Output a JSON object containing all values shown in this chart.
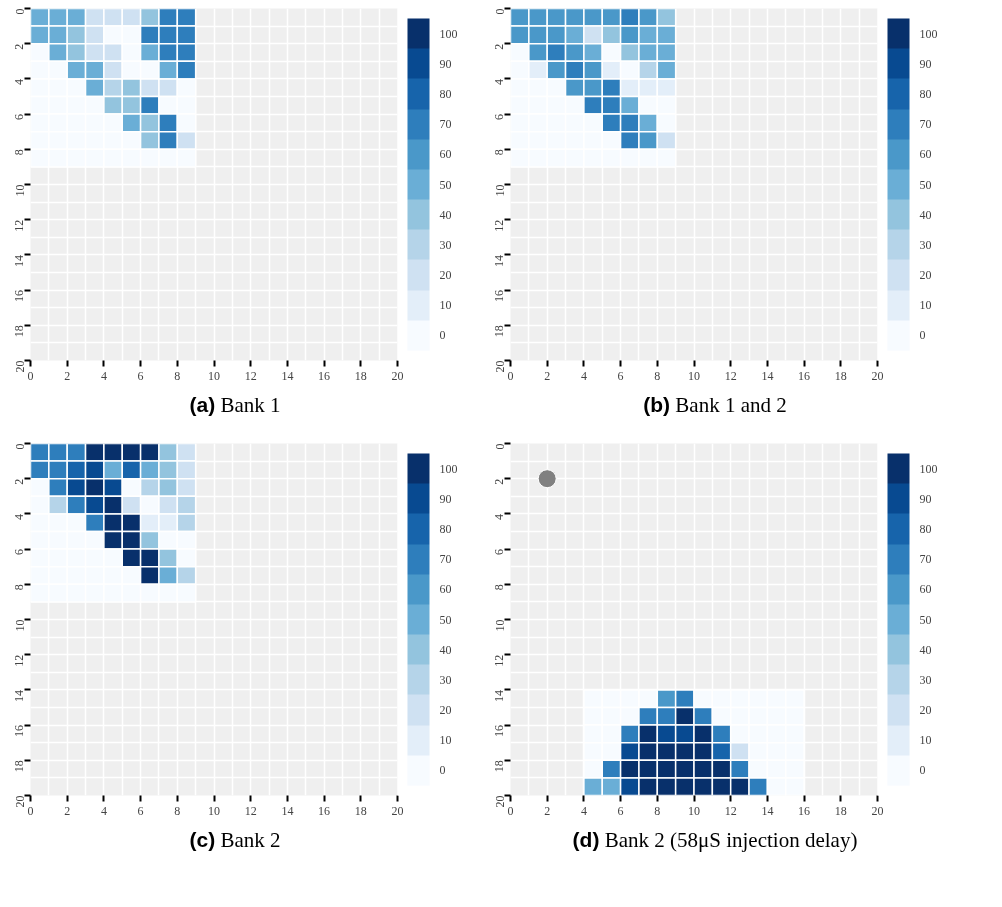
{
  "chart_data": [
    {
      "type": "heatmap",
      "title": "(a) Bank 1",
      "xlim": [
        0,
        20
      ],
      "ylim": [
        20,
        0
      ],
      "xticks": [
        0,
        2,
        4,
        6,
        8,
        10,
        12,
        14,
        16,
        18,
        20
      ],
      "yticks": [
        0,
        2,
        4,
        6,
        8,
        10,
        12,
        14,
        16,
        18,
        20
      ],
      "clim": [
        -5,
        105
      ],
      "cticks": [
        0,
        10,
        20,
        30,
        40,
        50,
        60,
        70,
        80,
        90,
        100
      ],
      "grid": true,
      "colors": [
        "#f7fbff",
        "#e3eef9",
        "#cfe1f2",
        "#b5d4e9",
        "#93c4de",
        "#6aaed6",
        "#4a98c9",
        "#2e7ebc",
        "#1764ab",
        "#084a91",
        "#08306b"
      ],
      "x": [
        0.5,
        1.5,
        2.5,
        3.5,
        4.5,
        5.5,
        6.5,
        7.5,
        8.5
      ],
      "y": [
        0.5,
        1.5,
        2.5,
        3.5,
        4.5,
        5.5,
        6.5,
        7.5,
        8.5
      ],
      "cells": [
        [
          50,
          50,
          50,
          20,
          20,
          20,
          40,
          70,
          70
        ],
        [
          50,
          50,
          40,
          20,
          0,
          0,
          70,
          70,
          70
        ],
        [
          0,
          50,
          40,
          20,
          20,
          0,
          50,
          70,
          70
        ],
        [
          0,
          0,
          50,
          50,
          20,
          0,
          0,
          50,
          70
        ],
        [
          0,
          0,
          0,
          50,
          30,
          40,
          20,
          20,
          0
        ],
        [
          0,
          0,
          0,
          0,
          40,
          40,
          70,
          0,
          0
        ],
        [
          0,
          0,
          0,
          0,
          0,
          50,
          40,
          70,
          0
        ],
        [
          0,
          0,
          0,
          0,
          0,
          0,
          40,
          70,
          20
        ],
        [
          0,
          0,
          0,
          0,
          0,
          0,
          0,
          0,
          0
        ]
      ]
    },
    {
      "type": "heatmap",
      "title": "(b) Bank 1 and 2",
      "xlim": [
        0,
        20
      ],
      "ylim": [
        20,
        0
      ],
      "xticks": [
        0,
        2,
        4,
        6,
        8,
        10,
        12,
        14,
        16,
        18,
        20
      ],
      "yticks": [
        0,
        2,
        4,
        6,
        8,
        10,
        12,
        14,
        16,
        18,
        20
      ],
      "clim": [
        -5,
        105
      ],
      "cticks": [
        0,
        10,
        20,
        30,
        40,
        50,
        60,
        70,
        80,
        90,
        100
      ],
      "grid": true,
      "colors": [
        "#f7fbff",
        "#e3eef9",
        "#cfe1f2",
        "#b5d4e9",
        "#93c4de",
        "#6aaed6",
        "#4a98c9",
        "#2e7ebc",
        "#1764ab",
        "#084a91",
        "#08306b"
      ],
      "x": [
        0.5,
        1.5,
        2.5,
        3.5,
        4.5,
        5.5,
        6.5,
        7.5,
        8.5
      ],
      "y": [
        0.5,
        1.5,
        2.5,
        3.5,
        4.5,
        5.5,
        6.5,
        7.5,
        8.5
      ],
      "cells": [
        [
          60,
          60,
          60,
          60,
          60,
          60,
          70,
          60,
          40
        ],
        [
          60,
          60,
          60,
          50,
          20,
          40,
          60,
          50,
          50
        ],
        [
          0,
          60,
          70,
          60,
          50,
          0,
          40,
          50,
          50
        ],
        [
          0,
          10,
          60,
          70,
          60,
          10,
          0,
          30,
          50
        ],
        [
          0,
          0,
          0,
          60,
          60,
          70,
          10,
          10,
          10
        ],
        [
          0,
          0,
          0,
          0,
          70,
          70,
          50,
          0,
          0
        ],
        [
          0,
          0,
          0,
          0,
          0,
          70,
          70,
          50,
          0
        ],
        [
          0,
          0,
          0,
          0,
          0,
          0,
          70,
          60,
          20
        ],
        [
          0,
          0,
          0,
          0,
          0,
          0,
          0,
          0,
          0
        ]
      ]
    },
    {
      "type": "heatmap",
      "title": "(c) Bank 2",
      "xlim": [
        0,
        20
      ],
      "ylim": [
        20,
        0
      ],
      "xticks": [
        0,
        2,
        4,
        6,
        8,
        10,
        12,
        14,
        16,
        18,
        20
      ],
      "yticks": [
        0,
        2,
        4,
        6,
        8,
        10,
        12,
        14,
        16,
        18,
        20
      ],
      "clim": [
        -5,
        105
      ],
      "cticks": [
        0,
        10,
        20,
        30,
        40,
        50,
        60,
        70,
        80,
        90,
        100
      ],
      "grid": true,
      "colors": [
        "#f7fbff",
        "#e3eef9",
        "#cfe1f2",
        "#b5d4e9",
        "#93c4de",
        "#6aaed6",
        "#4a98c9",
        "#2e7ebc",
        "#1764ab",
        "#084a91",
        "#08306b"
      ],
      "x": [
        0.5,
        1.5,
        2.5,
        3.5,
        4.5,
        5.5,
        6.5,
        7.5,
        8.5
      ],
      "y": [
        0.5,
        1.5,
        2.5,
        3.5,
        4.5,
        5.5,
        6.5,
        7.5,
        8.5
      ],
      "cells": [
        [
          70,
          70,
          70,
          100,
          100,
          100,
          100,
          40,
          20
        ],
        [
          70,
          70,
          80,
          90,
          50,
          80,
          50,
          40,
          20
        ],
        [
          0,
          70,
          90,
          100,
          90,
          0,
          30,
          40,
          20
        ],
        [
          0,
          30,
          70,
          90,
          100,
          20,
          0,
          20,
          30
        ],
        [
          0,
          0,
          0,
          70,
          100,
          100,
          10,
          10,
          30
        ],
        [
          0,
          0,
          0,
          0,
          100,
          100,
          40,
          0,
          0
        ],
        [
          0,
          0,
          0,
          0,
          0,
          100,
          100,
          40,
          0
        ],
        [
          0,
          0,
          0,
          0,
          0,
          0,
          100,
          50,
          30
        ],
        [
          0,
          0,
          0,
          0,
          0,
          0,
          0,
          0,
          0
        ]
      ]
    },
    {
      "type": "heatmap",
      "title": "(d) Bank 2 (58μS injection delay)",
      "xlim": [
        0,
        20
      ],
      "ylim": [
        20,
        0
      ],
      "xticks": [
        0,
        2,
        4,
        6,
        8,
        10,
        12,
        14,
        16,
        18,
        20
      ],
      "yticks": [
        0,
        2,
        4,
        6,
        8,
        10,
        12,
        14,
        16,
        18,
        20
      ],
      "clim": [
        -5,
        105
      ],
      "cticks": [
        0,
        10,
        20,
        30,
        40,
        50,
        60,
        70,
        80,
        90,
        100
      ],
      "grid": true,
      "marker": "circle",
      "colors": [
        "#f7fbff",
        "#e3eef9",
        "#cfe1f2",
        "#b5d4e9",
        "#93c4de",
        "#6aaed6",
        "#4a98c9",
        "#2e7ebc",
        "#1764ab",
        "#084a91",
        "#08306b"
      ],
      "series": [
        {
          "type": "scatter",
          "x": [
            2
          ],
          "values": [
            2
          ],
          "color": "#808080"
        }
      ],
      "x": [
        4.5,
        5.5,
        6.5,
        7.5,
        8.5,
        9.5,
        10.5,
        11.5,
        12.5,
        13.5,
        14.5,
        15.5
      ],
      "y": [
        14.5,
        15.5,
        16.5,
        17.5,
        18.5,
        19.5
      ],
      "cells": [
        [
          0,
          0,
          0,
          0,
          60,
          70,
          0,
          0,
          0,
          0,
          0,
          0
        ],
        [
          0,
          0,
          0,
          70,
          70,
          100,
          70,
          0,
          0,
          0,
          0,
          0
        ],
        [
          0,
          0,
          70,
          100,
          90,
          90,
          100,
          70,
          0,
          0,
          0,
          0
        ],
        [
          0,
          0,
          90,
          100,
          100,
          100,
          100,
          80,
          20,
          0,
          0,
          0
        ],
        [
          0,
          70,
          100,
          100,
          100,
          100,
          100,
          100,
          70,
          0,
          0,
          0
        ],
        [
          50,
          50,
          90,
          100,
          100,
          100,
          100,
          100,
          100,
          70,
          0,
          0
        ]
      ]
    }
  ]
}
